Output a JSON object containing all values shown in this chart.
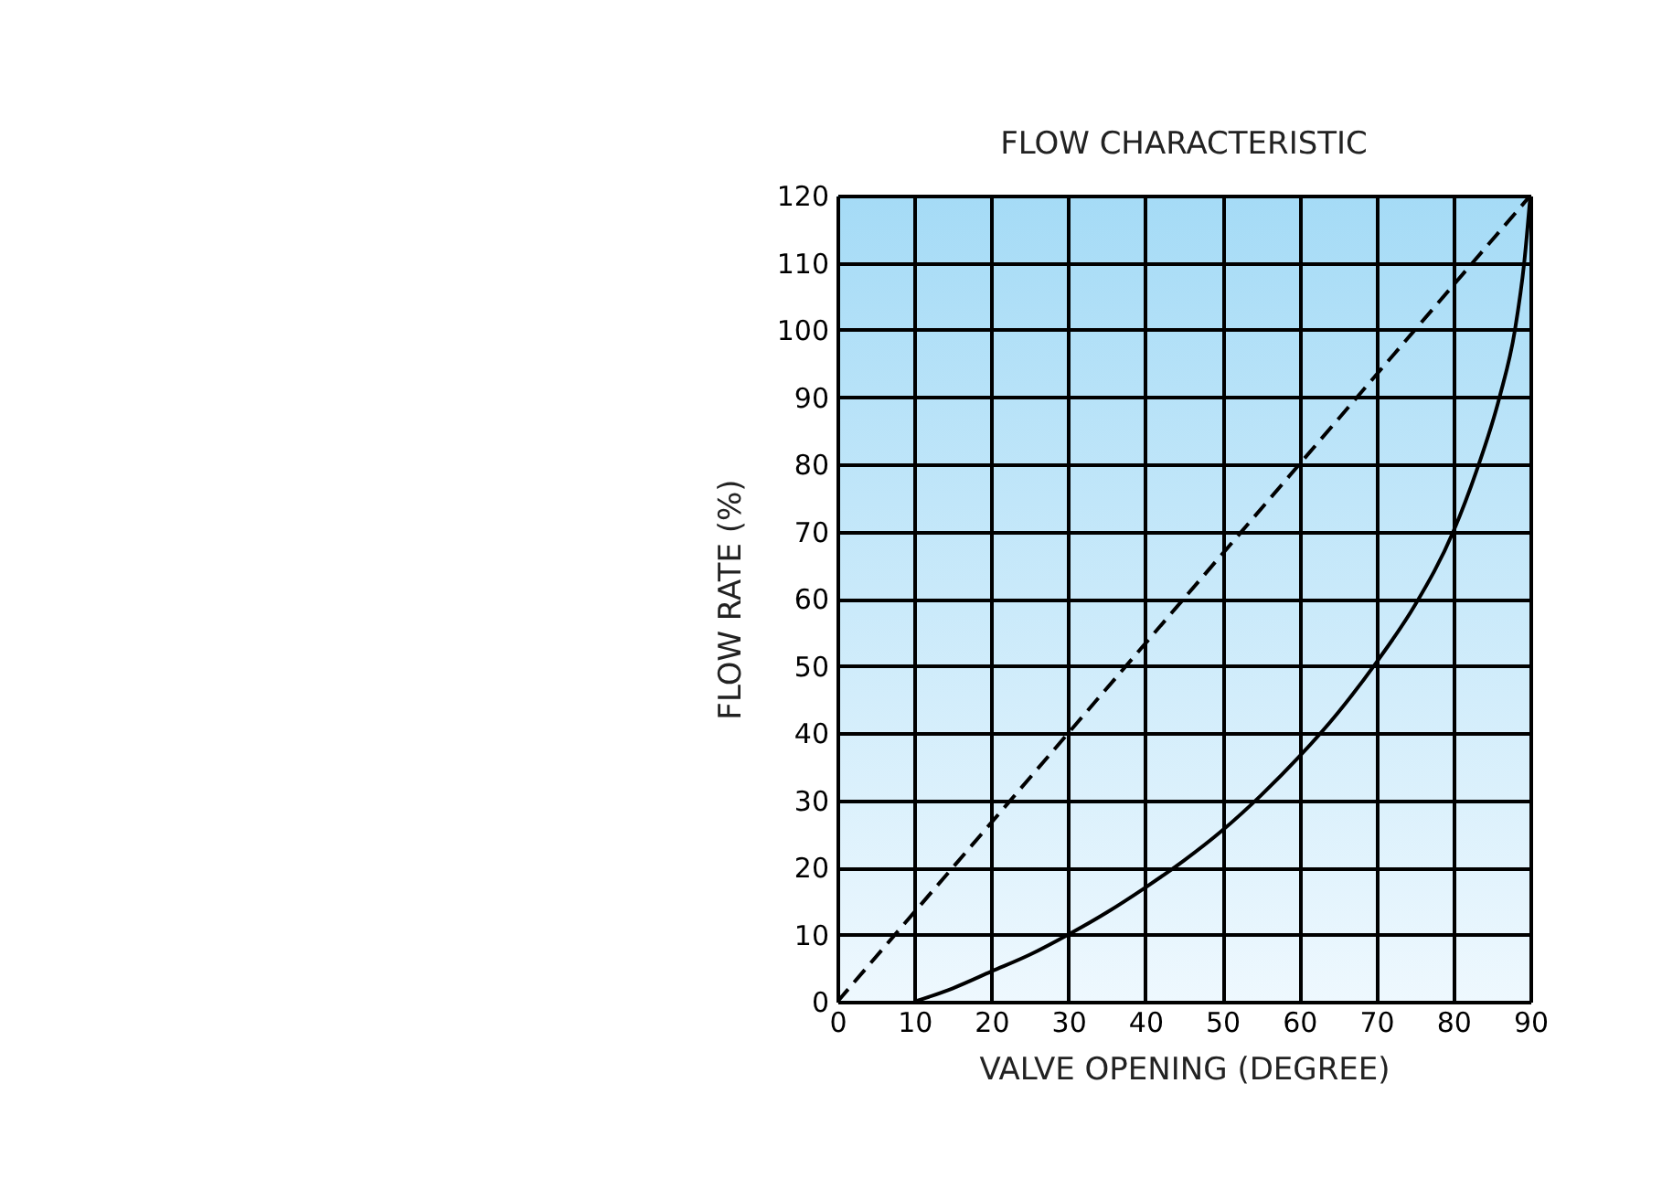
{
  "chart_data": {
    "type": "line",
    "title": "FLOW CHARACTERISTIC",
    "xlabel": "VALVE OPENING (DEGREE)",
    "ylabel": "FLOW RATE (%)",
    "xlim": [
      0,
      90
    ],
    "ylim": [
      0,
      120
    ],
    "xticks": [
      0,
      10,
      20,
      30,
      40,
      50,
      60,
      70,
      80,
      90
    ],
    "yticks": [
      0,
      10,
      20,
      30,
      40,
      50,
      60,
      70,
      80,
      90,
      100,
      110,
      120
    ],
    "grid": true,
    "series": [
      {
        "color": "#000000",
        "line_style": "dashed",
        "x": [
          0,
          90
        ],
        "values": [
          0,
          120
        ]
      },
      {
        "color": "#000000",
        "line_style": "solid",
        "x": [
          10,
          15,
          20,
          25,
          30,
          35,
          40,
          45,
          50,
          55,
          60,
          65,
          70,
          75,
          80,
          83,
          86,
          88,
          89.2,
          90
        ],
        "values": [
          0,
          2,
          4.5,
          7,
          10,
          13.3,
          17,
          21,
          25.5,
          30.7,
          36.5,
          43,
          50.5,
          59,
          70,
          79,
          90,
          100,
          110,
          120
        ]
      }
    ]
  }
}
